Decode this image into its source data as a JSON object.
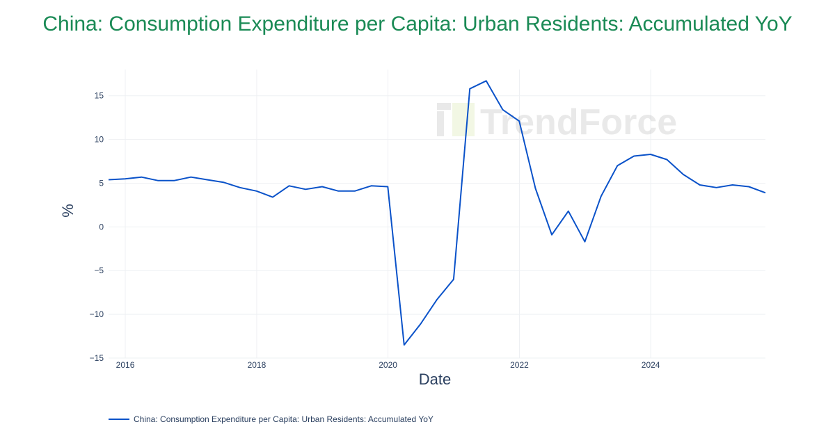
{
  "chart_data": {
    "type": "line",
    "title": "China: Consumption Expenditure per Capita: Urban Residents: Accumulated YoY",
    "xlabel": "Date",
    "ylabel": "%",
    "xlim": [
      "2015-09-30",
      "2025-09-30"
    ],
    "ylim": [
      -15,
      18
    ],
    "x_ticks": [
      "2016",
      "2018",
      "2020",
      "2022",
      "2024"
    ],
    "y_ticks": [
      15,
      10,
      5,
      0,
      -5,
      -10,
      -15
    ],
    "y_tick_labels": [
      "15",
      "10",
      "5",
      "0",
      "−5",
      "−10",
      "−15"
    ],
    "grid": true,
    "legend_position": "bottom-left",
    "series": [
      {
        "name": "China: Consumption Expenditure per Capita: Urban Residents: Accumulated YoY",
        "color": "#0a52c9",
        "x": [
          "2015-09-30",
          "2015-12-31",
          "2016-03-31",
          "2016-06-30",
          "2016-09-30",
          "2016-12-31",
          "2017-03-31",
          "2017-06-30",
          "2017-09-30",
          "2017-12-31",
          "2018-03-31",
          "2018-06-30",
          "2018-09-30",
          "2018-12-31",
          "2019-03-31",
          "2019-06-30",
          "2019-09-30",
          "2019-12-31",
          "2020-03-31",
          "2020-06-30",
          "2020-09-30",
          "2020-12-31",
          "2021-03-31",
          "2021-06-30",
          "2021-09-30",
          "2021-12-31",
          "2022-03-31",
          "2022-06-30",
          "2022-09-30",
          "2022-12-31",
          "2023-03-31",
          "2023-06-30",
          "2023-09-30",
          "2023-12-31",
          "2024-03-31",
          "2024-06-30",
          "2024-09-30",
          "2024-12-31",
          "2025-03-31",
          "2025-06-30",
          "2025-09-30"
        ],
        "y": [
          5.4,
          5.5,
          5.7,
          5.3,
          5.3,
          5.7,
          5.4,
          5.1,
          4.5,
          4.1,
          3.4,
          4.7,
          4.3,
          4.6,
          4.1,
          4.1,
          4.7,
          4.6,
          -13.5,
          -11.1,
          -8.3,
          -6.0,
          15.8,
          16.7,
          13.4,
          12.1,
          4.4,
          -0.9,
          1.8,
          -1.7,
          3.5,
          7.0,
          8.1,
          8.3,
          7.7,
          6.0,
          4.8,
          4.5,
          4.8,
          4.6,
          3.9
        ]
      }
    ]
  },
  "watermark": "TrendForce"
}
